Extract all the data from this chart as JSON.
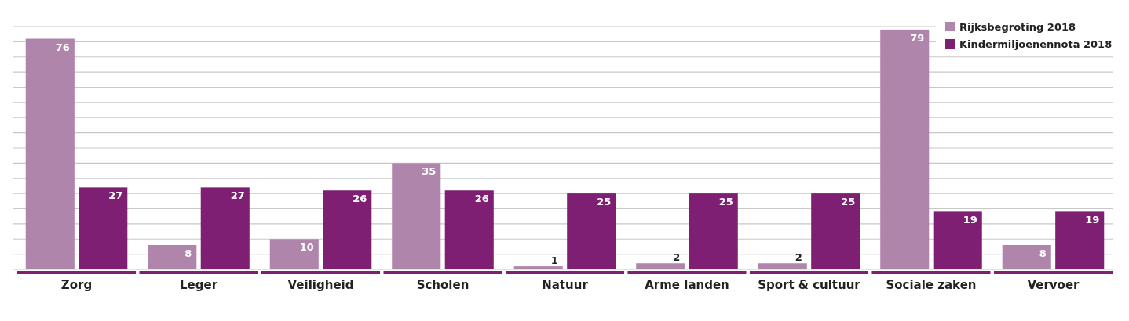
{
  "chart_data": {
    "type": "bar",
    "categories": [
      "Zorg",
      "Leger",
      "Veiligheid",
      "Scholen",
      "Natuur",
      "Arme landen",
      "Sport & cultuur",
      "Sociale zaken",
      "Vervoer"
    ],
    "series": [
      {
        "name": "Rijksbegroting 2018",
        "color": "#b085ab",
        "values": [
          76,
          8,
          10,
          35,
          1,
          2,
          2,
          79,
          8
        ]
      },
      {
        "name": "Kindermiljoenennota 2018",
        "color": "#7e1f73",
        "values": [
          27,
          27,
          26,
          26,
          25,
          25,
          25,
          19,
          19
        ]
      }
    ],
    "ylim": [
      0,
      80
    ],
    "yticks": [
      {
        "value": 0,
        "label": null
      },
      {
        "value": 5,
        "label": null
      },
      {
        "value": 10,
        "label": null
      },
      {
        "value": 15,
        "label": null
      },
      {
        "value": 20,
        "label": null
      },
      {
        "value": 25,
        "label": null
      },
      {
        "value": 30,
        "label": null
      },
      {
        "value": 35,
        "label": null
      },
      {
        "value": 40,
        "label": null
      },
      {
        "value": 45,
        "label": null
      },
      {
        "value": 50,
        "label": null
      },
      {
        "value": 55,
        "label": null
      },
      {
        "value": 60,
        "label": null
      },
      {
        "value": 65,
        "label": null
      },
      {
        "value": 70,
        "label": null
      },
      {
        "value": 75,
        "label": null
      },
      {
        "value": 80,
        "label": null
      }
    ],
    "grid": "y",
    "tick_labels": "x",
    "data_labels": true,
    "legend": "top right"
  }
}
